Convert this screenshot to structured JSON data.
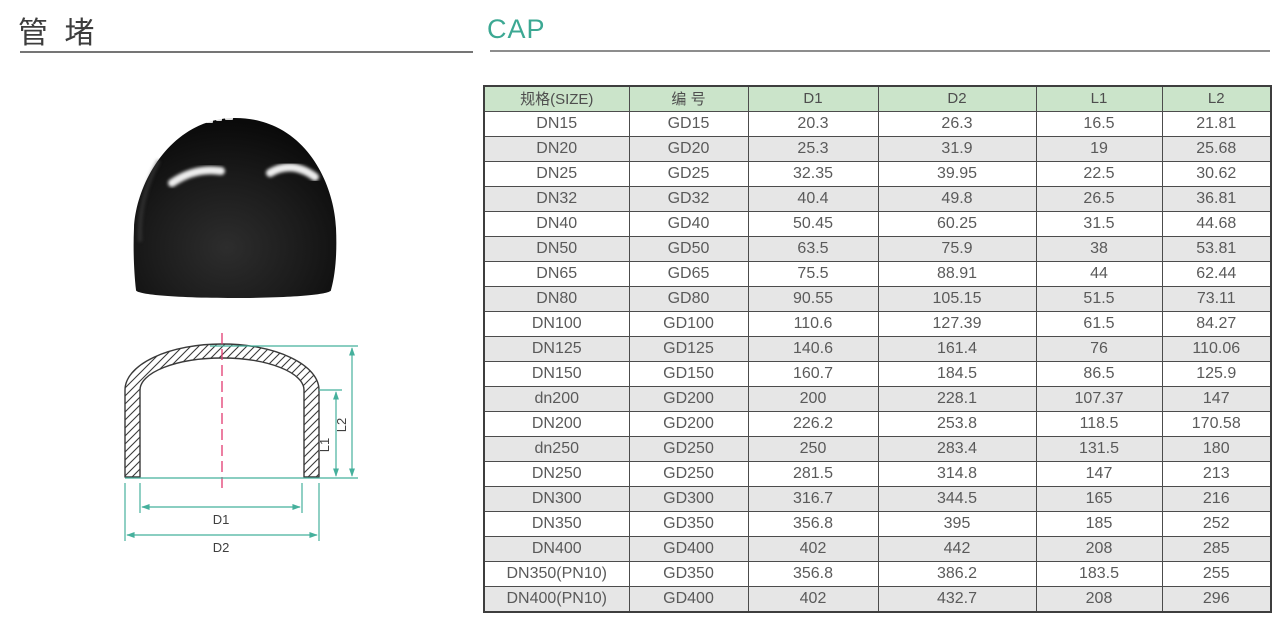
{
  "page": {
    "title_cn": "管 堵",
    "title_en": "CAP"
  },
  "colors": {
    "accent_teal": "#3CA893",
    "table_header_green": "#cbe4ca",
    "table_alt_row_gray": "#e6e6e6",
    "table_border": "#4c4c4c",
    "dimension_line_teal": "#45b09c",
    "centerline_pink": "#e23a70",
    "drawing_outline": "#3a3a3a",
    "body_text": "#5a5a5a"
  },
  "drawing": {
    "labels": {
      "d1": "D1",
      "d2": "D2",
      "l1": "L1",
      "l2": "L2"
    }
  },
  "table": {
    "headers": [
      "规格(SIZE)",
      "编  号",
      "D1",
      "D2",
      "L1",
      "L2"
    ],
    "rows": [
      [
        "DN15",
        "GD15",
        "20.3",
        "26.3",
        "16.5",
        "21.81"
      ],
      [
        "DN20",
        "GD20",
        "25.3",
        "31.9",
        "19",
        "25.68"
      ],
      [
        "DN25",
        "GD25",
        "32.35",
        "39.95",
        "22.5",
        "30.62"
      ],
      [
        "DN32",
        "GD32",
        "40.4",
        "49.8",
        "26.5",
        "36.81"
      ],
      [
        "DN40",
        "GD40",
        "50.45",
        "60.25",
        "31.5",
        "44.68"
      ],
      [
        "DN50",
        "GD50",
        "63.5",
        "75.9",
        "38",
        "53.81"
      ],
      [
        "DN65",
        "GD65",
        "75.5",
        "88.91",
        "44",
        "62.44"
      ],
      [
        "DN80",
        "GD80",
        "90.55",
        "105.15",
        "51.5",
        "73.11"
      ],
      [
        "DN100",
        "GD100",
        "110.6",
        "127.39",
        "61.5",
        "84.27"
      ],
      [
        "DN125",
        "GD125",
        "140.6",
        "161.4",
        "76",
        "110.06"
      ],
      [
        "DN150",
        "GD150",
        "160.7",
        "184.5",
        "86.5",
        "125.9"
      ],
      [
        "dn200",
        "GD200",
        "200",
        "228.1",
        "107.37",
        "147"
      ],
      [
        "DN200",
        "GD200",
        "226.2",
        "253.8",
        "118.5",
        "170.58"
      ],
      [
        "dn250",
        "GD250",
        "250",
        "283.4",
        "131.5",
        "180"
      ],
      [
        "DN250",
        "GD250",
        "281.5",
        "314.8",
        "147",
        "213"
      ],
      [
        "DN300",
        "GD300",
        "316.7",
        "344.5",
        "165",
        "216"
      ],
      [
        "DN350",
        "GD350",
        "356.8",
        "395",
        "185",
        "252"
      ],
      [
        "DN400",
        "GD400",
        "402",
        "442",
        "208",
        "285"
      ],
      [
        "DN350(PN10)",
        "GD350",
        "356.8",
        "386.2",
        "183.5",
        "255"
      ],
      [
        "DN400(PN10)",
        "GD400",
        "402",
        "432.7",
        "208",
        "296"
      ]
    ]
  }
}
